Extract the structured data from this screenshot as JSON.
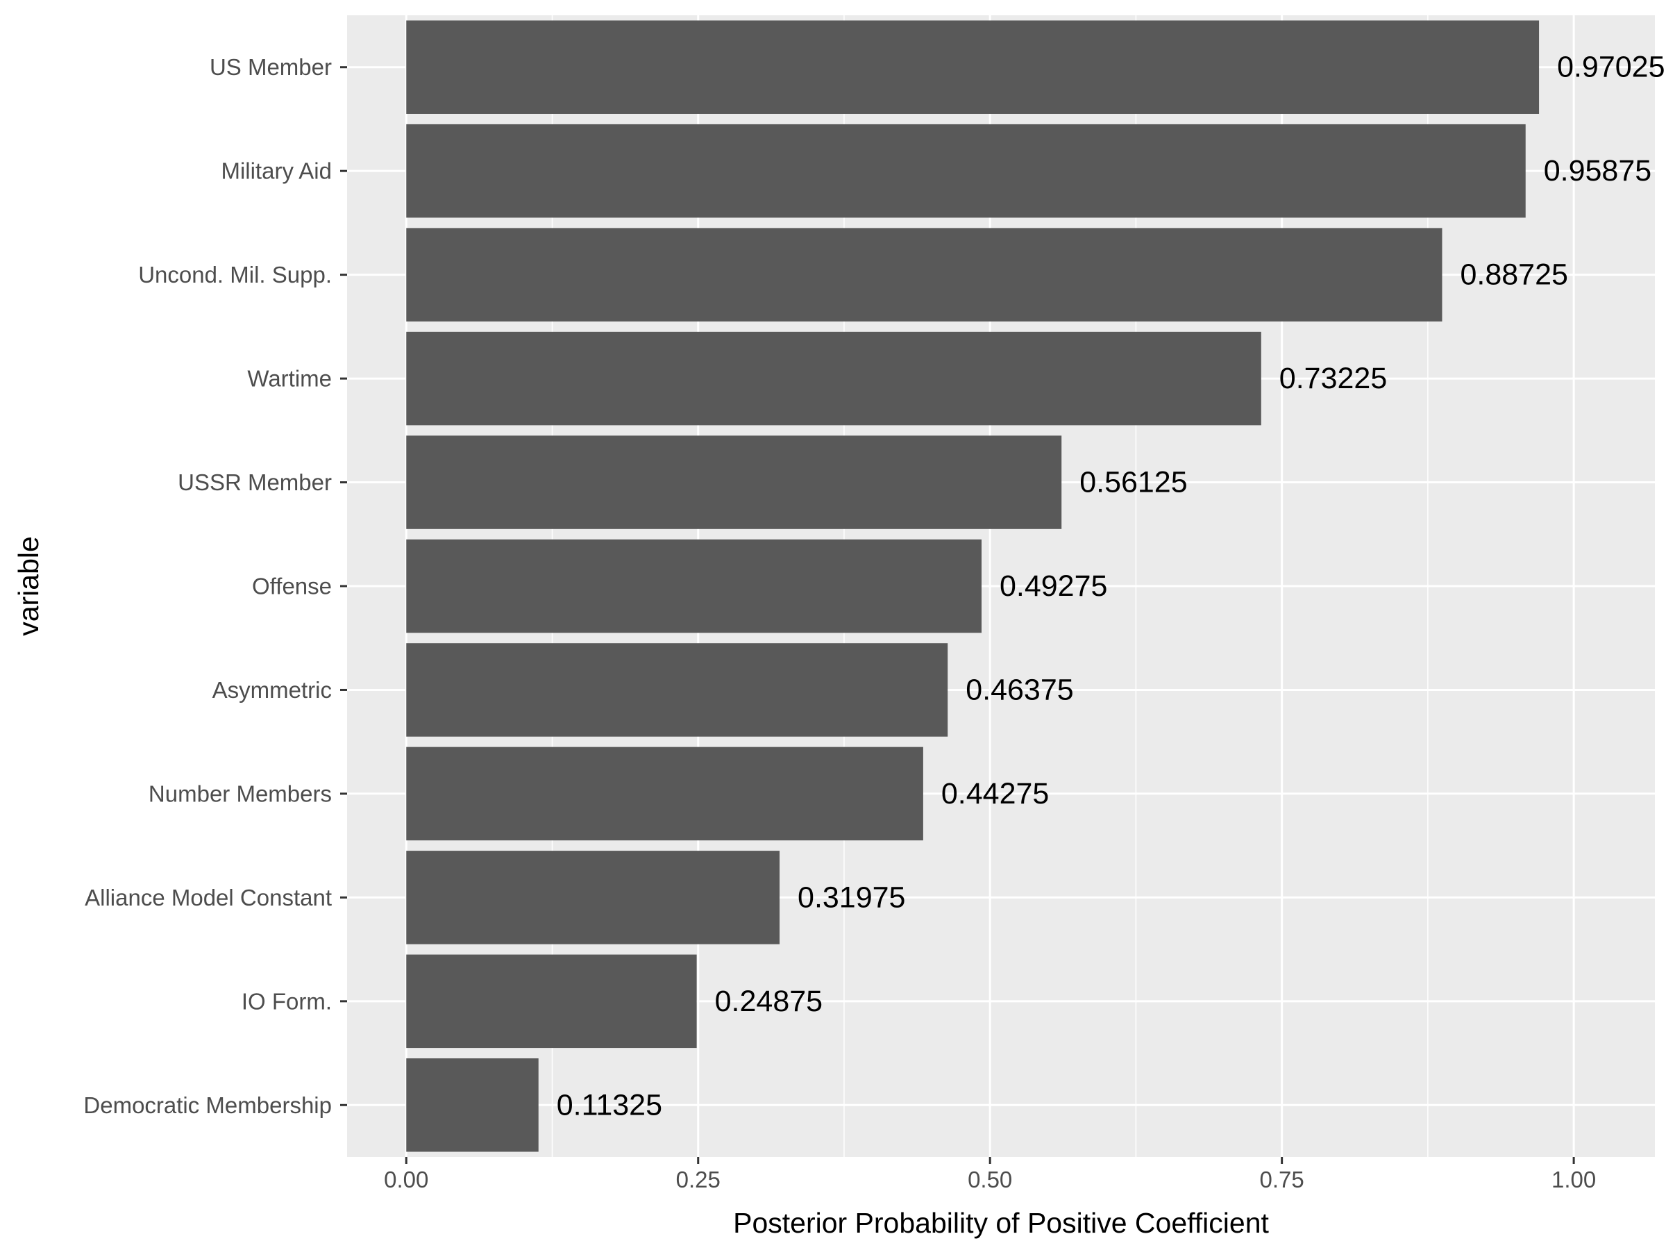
{
  "chart_data": {
    "type": "bar",
    "orientation": "horizontal",
    "categories": [
      "US Member",
      "Military Aid",
      "Uncond. Mil. Supp.",
      "Wartime",
      "USSR Member",
      "Offense",
      "Asymmetric",
      "Number Members",
      "Alliance Model Constant",
      "IO Form.",
      "Democratic Membership"
    ],
    "values": [
      0.97025,
      0.95875,
      0.88725,
      0.73225,
      0.56125,
      0.49275,
      0.46375,
      0.44275,
      0.31975,
      0.24875,
      0.11325
    ],
    "value_labels": [
      "0.97025",
      "0.95875",
      "0.88725",
      "0.73225",
      "0.56125",
      "0.49275",
      "0.46375",
      "0.44275",
      "0.31975",
      "0.24875",
      "0.11325"
    ],
    "xticks": [
      0,
      0.25,
      0.5,
      0.75,
      1
    ],
    "xtick_labels": [
      "0.00",
      "0.25",
      "0.50",
      "0.75",
      "1.00"
    ],
    "xlim": [
      -0.0507,
      1.0695
    ],
    "xlabel": "Posterior Probability of Positive Coefficient",
    "ylabel": "variable",
    "grid": true,
    "colors": {
      "bar": "#595959",
      "panel": "#ebebeb",
      "grid": "#ffffff",
      "tick_text": "#4d4d4d",
      "axis_text": "#000000"
    }
  }
}
